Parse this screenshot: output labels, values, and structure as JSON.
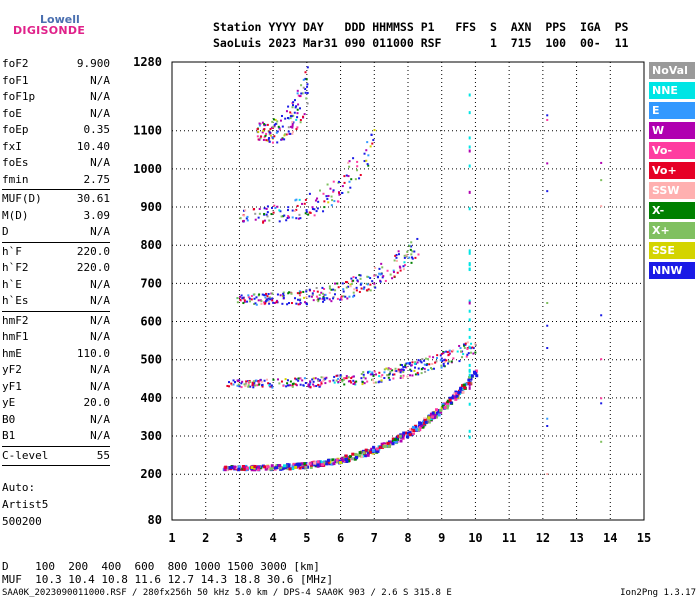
{
  "logo": {
    "top": "Lowell",
    "bottom": "DIGISONDE"
  },
  "header": {
    "line1": "Station YYYY DAY   DDD HHMMSS P1   FFS  S  AXN  PPS  IGA  PS",
    "line2": "SaoLuis 2023 Mar31 090 011000 RSF       1  715  100  00-  11"
  },
  "params": [
    {
      "name": "foF2",
      "value": "9.900"
    },
    {
      "name": "foF1",
      "value": "N/A"
    },
    {
      "name": "foF1p",
      "value": "N/A"
    },
    {
      "name": "foE",
      "value": "N/A"
    },
    {
      "name": "foEp",
      "value": "0.35"
    },
    {
      "name": "fxI",
      "value": "10.40"
    },
    {
      "name": "foEs",
      "value": "N/A"
    },
    {
      "name": "fmin",
      "value": "2.75"
    },
    {
      "sep": true
    },
    {
      "name": "MUF(D)",
      "value": "30.61"
    },
    {
      "name": "M(D)",
      "value": "3.09"
    },
    {
      "name": "D",
      "value": "N/A"
    },
    {
      "sep": true
    },
    {
      "name": "h`F",
      "value": "220.0"
    },
    {
      "name": "h`F2",
      "value": "220.0"
    },
    {
      "name": "h`E",
      "value": "N/A"
    },
    {
      "name": "h`Es",
      "value": "N/A"
    },
    {
      "sep": true
    },
    {
      "name": "hmF2",
      "value": "N/A"
    },
    {
      "name": "hmF1",
      "value": "N/A"
    },
    {
      "name": "hmE",
      "value": "110.0"
    },
    {
      "name": "yF2",
      "value": "N/A"
    },
    {
      "name": "yF1",
      "value": "N/A"
    },
    {
      "name": "yE",
      "value": "20.0"
    },
    {
      "name": "B0",
      "value": "N/A"
    },
    {
      "name": "B1",
      "value": "N/A"
    },
    {
      "sep": true
    },
    {
      "name": "C-level",
      "value": "55"
    },
    {
      "sep": true
    }
  ],
  "auto": {
    "l1": "Auto:",
    "l2": "Artist5",
    "l3": "500200"
  },
  "legend": [
    {
      "label": "NoVal",
      "color": "#9a9a9a"
    },
    {
      "label": "NNE",
      "color": "#00e5e5"
    },
    {
      "label": "E",
      "color": "#3399ff"
    },
    {
      "label": "W",
      "color": "#b000b0"
    },
    {
      "label": "Vo-",
      "color": "#ff3ca0"
    },
    {
      "label": "Vo+",
      "color": "#e60026"
    },
    {
      "label": "SSW",
      "color": "#ffb0b0"
    },
    {
      "label": "X-",
      "color": "#008000"
    },
    {
      "label": "X+",
      "color": "#80c060"
    },
    {
      "label": "SSE",
      "color": "#d4d400"
    },
    {
      "label": "NNW",
      "color": "#1a1ae6"
    }
  ],
  "bottom": {
    "d_line": "D    100  200  400  600  800 1000 1500 3000 [km]",
    "muf_line": "MUF  10.3 10.4 10.8 11.6 12.7 14.3 18.8 30.6 [MHz]",
    "footer": "SAA0K_2023090011000.RSF / 280fx256h 50 kHz 5.0 km / DPS-4 SAA0K 903 / 2.6 S 315.8 E",
    "version": "Ion2Png 1.3.17"
  },
  "chart_data": {
    "type": "scatter",
    "x_ticks": [
      "1",
      "2",
      "3",
      "4",
      "5",
      "6",
      "7",
      "8",
      "9",
      "10",
      "11",
      "12",
      "13",
      "14",
      "15"
    ],
    "y_ticks": [
      "80",
      "200",
      "300",
      "400",
      "500",
      "600",
      "700",
      "800",
      "900",
      "1000",
      "1100",
      "1280"
    ],
    "xlim": [
      1,
      15
    ],
    "ylim": [
      80,
      1280
    ],
    "traces": [
      {
        "name": "F trace",
        "x_range": [
          2.5,
          10.0
        ],
        "h_base": 220,
        "h_span": 250,
        "scale": 1
      },
      {
        "name": "2F trace",
        "x_range": [
          2.6,
          10.0
        ],
        "h_base": 440,
        "h_span": 100,
        "scale": 2
      },
      {
        "name": "3F trace",
        "x_range": [
          2.9,
          8.3
        ],
        "h_base": 660,
        "h_span": 140,
        "scale": 3
      },
      {
        "name": "4F trace",
        "x_range": [
          2.9,
          7.0
        ],
        "h_base": 880,
        "h_span": 200,
        "scale": 4
      },
      {
        "name": "5F trace",
        "x_range": [
          3.5,
          5.0
        ],
        "h_base": 1100,
        "h_span": 120,
        "scale": 5
      }
    ]
  }
}
